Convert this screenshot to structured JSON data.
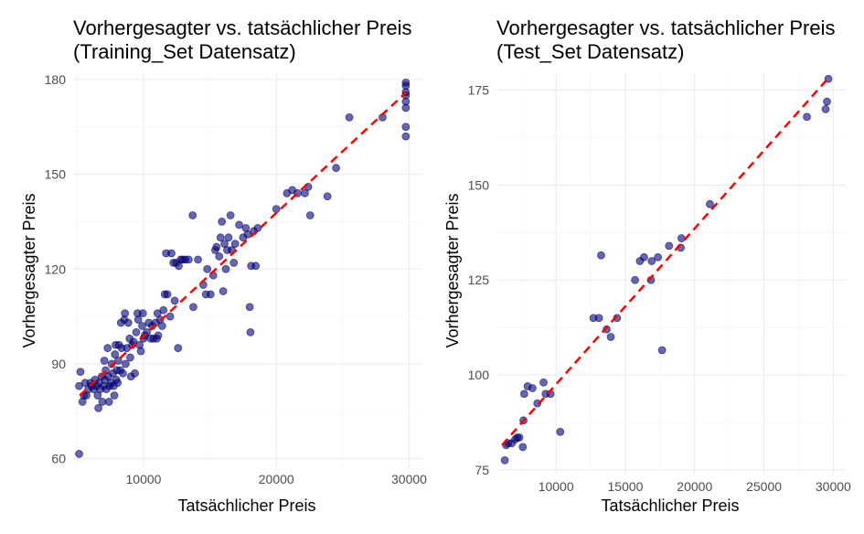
{
  "chart_data": [
    {
      "type": "scatter",
      "title_line1": "Vorhergesagter vs. tatsächlicher Preis",
      "title_line2": "(Training_Set Datensatz)",
      "xlabel": "Tatsächlicher Preis",
      "ylabel": "Vorhergesagter Preis",
      "xlim": [
        4700,
        31000
      ],
      "ylim": [
        57,
        182
      ],
      "x_ticks": [
        10000,
        20000,
        30000
      ],
      "x_tick_labels": [
        "10000",
        "20000",
        "30000"
      ],
      "y_ticks": [
        60,
        90,
        120,
        150,
        180
      ],
      "y_tick_labels": [
        "60",
        "90",
        "120",
        "150",
        "180"
      ],
      "grid": true,
      "fit_line": [
        [
          5200,
          80
        ],
        [
          29800,
          176
        ]
      ],
      "points": [
        [
          5150,
          61.5
        ],
        [
          5150,
          83
        ],
        [
          5250,
          87.5
        ],
        [
          5400,
          78
        ],
        [
          5500,
          80
        ],
        [
          5600,
          84
        ],
        [
          5700,
          80
        ],
        [
          5850,
          82
        ],
        [
          6000,
          84
        ],
        [
          6100,
          83
        ],
        [
          6250,
          82
        ],
        [
          6350,
          85
        ],
        [
          6450,
          83
        ],
        [
          6550,
          80
        ],
        [
          6600,
          76
        ],
        [
          6650,
          84
        ],
        [
          6750,
          82
        ],
        [
          6850,
          86
        ],
        [
          6900,
          78
        ],
        [
          7000,
          83
        ],
        [
          7050,
          91
        ],
        [
          7100,
          85
        ],
        [
          7150,
          88
        ],
        [
          7200,
          82
        ],
        [
          7300,
          95
        ],
        [
          7350,
          86
        ],
        [
          7400,
          78
        ],
        [
          7450,
          83
        ],
        [
          7550,
          84
        ],
        [
          7600,
          90
        ],
        [
          7700,
          87
        ],
        [
          7750,
          83
        ],
        [
          7800,
          80
        ],
        [
          7850,
          93
        ],
        [
          7900,
          96
        ],
        [
          7950,
          85
        ],
        [
          8000,
          88
        ],
        [
          8050,
          84
        ],
        [
          8100,
          91
        ],
        [
          8150,
          96
        ],
        [
          8250,
          88
        ],
        [
          8300,
          103
        ],
        [
          8350,
          95
        ],
        [
          8450,
          87
        ],
        [
          8550,
          104
        ],
        [
          8600,
          106
        ],
        [
          8650,
          90
        ],
        [
          8750,
          95
        ],
        [
          8850,
          103
        ],
        [
          8950,
          98
        ],
        [
          9000,
          92
        ],
        [
          9050,
          86
        ],
        [
          9150,
          96
        ],
        [
          9250,
          97
        ],
        [
          9350,
          87
        ],
        [
          9450,
          100
        ],
        [
          9550,
          106
        ],
        [
          9600,
          104
        ],
        [
          9700,
          96
        ],
        [
          9800,
          94
        ],
        [
          9900,
          102
        ],
        [
          9950,
          106
        ],
        [
          10000,
          98
        ],
        [
          10100,
          99
        ],
        [
          10250,
          100
        ],
        [
          10400,
          103
        ],
        [
          10550,
          98
        ],
        [
          10650,
          102
        ],
        [
          10750,
          98
        ],
        [
          10900,
          103
        ],
        [
          11000,
          98
        ],
        [
          11050,
          106
        ],
        [
          11100,
          99
        ],
        [
          11250,
          104
        ],
        [
          11400,
          102
        ],
        [
          11500,
          107
        ],
        [
          11600,
          112
        ],
        [
          11700,
          125
        ],
        [
          11800,
          112
        ],
        [
          12000,
          105
        ],
        [
          12100,
          125
        ],
        [
          12250,
          122
        ],
        [
          12350,
          110
        ],
        [
          12450,
          122
        ],
        [
          12600,
          95
        ],
        [
          12650,
          121
        ],
        [
          12800,
          123
        ],
        [
          12950,
          123
        ],
        [
          13150,
          123
        ],
        [
          13400,
          123
        ],
        [
          13700,
          137
        ],
        [
          13750,
          108
        ],
        [
          14100,
          123
        ],
        [
          14500,
          115
        ],
        [
          14700,
          112
        ],
        [
          14800,
          120
        ],
        [
          15050,
          112
        ],
        [
          15250,
          118
        ],
        [
          15400,
          126
        ],
        [
          15500,
          127
        ],
        [
          15700,
          124
        ],
        [
          15800,
          130
        ],
        [
          15900,
          135
        ],
        [
          16000,
          113
        ],
        [
          16100,
          128
        ],
        [
          16200,
          120
        ],
        [
          16300,
          126
        ],
        [
          16400,
          130
        ],
        [
          16550,
          137
        ],
        [
          16650,
          126
        ],
        [
          16800,
          122
        ],
        [
          16900,
          128
        ],
        [
          17200,
          134
        ],
        [
          17500,
          130
        ],
        [
          17700,
          133
        ],
        [
          17850,
          131
        ],
        [
          18000,
          108
        ],
        [
          18050,
          100
        ],
        [
          18100,
          121
        ],
        [
          18300,
          132
        ],
        [
          18450,
          121
        ],
        [
          18600,
          133
        ],
        [
          20000,
          139
        ],
        [
          20800,
          144
        ],
        [
          21200,
          145
        ],
        [
          21600,
          144
        ],
        [
          22150,
          144
        ],
        [
          22400,
          146
        ],
        [
          22550,
          137
        ],
        [
          23850,
          143
        ],
        [
          24500,
          152
        ],
        [
          25500,
          168
        ],
        [
          28000,
          168
        ],
        [
          29750,
          162
        ],
        [
          29750,
          165
        ],
        [
          29750,
          171
        ],
        [
          29750,
          173
        ],
        [
          29750,
          175
        ],
        [
          29750,
          176
        ],
        [
          29750,
          178
        ],
        [
          29750,
          179
        ]
      ]
    },
    {
      "type": "scatter",
      "title_line1": "Vorhergesagter vs. tatsächlicher Preis",
      "title_line2": "(Test_Set Datensatz)",
      "xlabel": "Tatsächlicher Preis",
      "ylabel": "Vorhergesagter Preis",
      "xlim": [
        5700,
        30900
      ],
      "ylim": [
        73.5,
        179.5
      ],
      "x_ticks": [
        10000,
        15000,
        20000,
        25000,
        30000
      ],
      "x_tick_labels": [
        "10000",
        "15000",
        "20000",
        "25000",
        "30000"
      ],
      "y_ticks": [
        75,
        100,
        125,
        150,
        175
      ],
      "y_tick_labels": [
        "75",
        "100",
        "125",
        "150",
        "175"
      ],
      "grid": true,
      "fit_line": [
        [
          6100,
          81.5
        ],
        [
          29600,
          178
        ]
      ],
      "points": [
        [
          6300,
          77.5
        ],
        [
          6400,
          81.5
        ],
        [
          6550,
          82
        ],
        [
          6800,
          82
        ],
        [
          7050,
          83
        ],
        [
          7200,
          83.5
        ],
        [
          7350,
          83.5
        ],
        [
          7600,
          81
        ],
        [
          7650,
          88
        ],
        [
          7700,
          95
        ],
        [
          7950,
          97
        ],
        [
          8300,
          96.5
        ],
        [
          8650,
          92.5
        ],
        [
          9100,
          98
        ],
        [
          9250,
          95
        ],
        [
          9600,
          95
        ],
        [
          10300,
          85
        ],
        [
          12700,
          115
        ],
        [
          13100,
          115
        ],
        [
          13250,
          131.5
        ],
        [
          13650,
          112
        ],
        [
          13950,
          110
        ],
        [
          14400,
          115
        ],
        [
          15700,
          125
        ],
        [
          16050,
          130
        ],
        [
          16350,
          131
        ],
        [
          16850,
          125
        ],
        [
          16900,
          130
        ],
        [
          17350,
          131
        ],
        [
          17650,
          106.5
        ],
        [
          18150,
          134
        ],
        [
          19050,
          136
        ],
        [
          19000,
          133.5
        ],
        [
          21100,
          145
        ],
        [
          28100,
          168
        ],
        [
          29450,
          170
        ],
        [
          29550,
          172
        ],
        [
          29650,
          178
        ]
      ]
    }
  ]
}
